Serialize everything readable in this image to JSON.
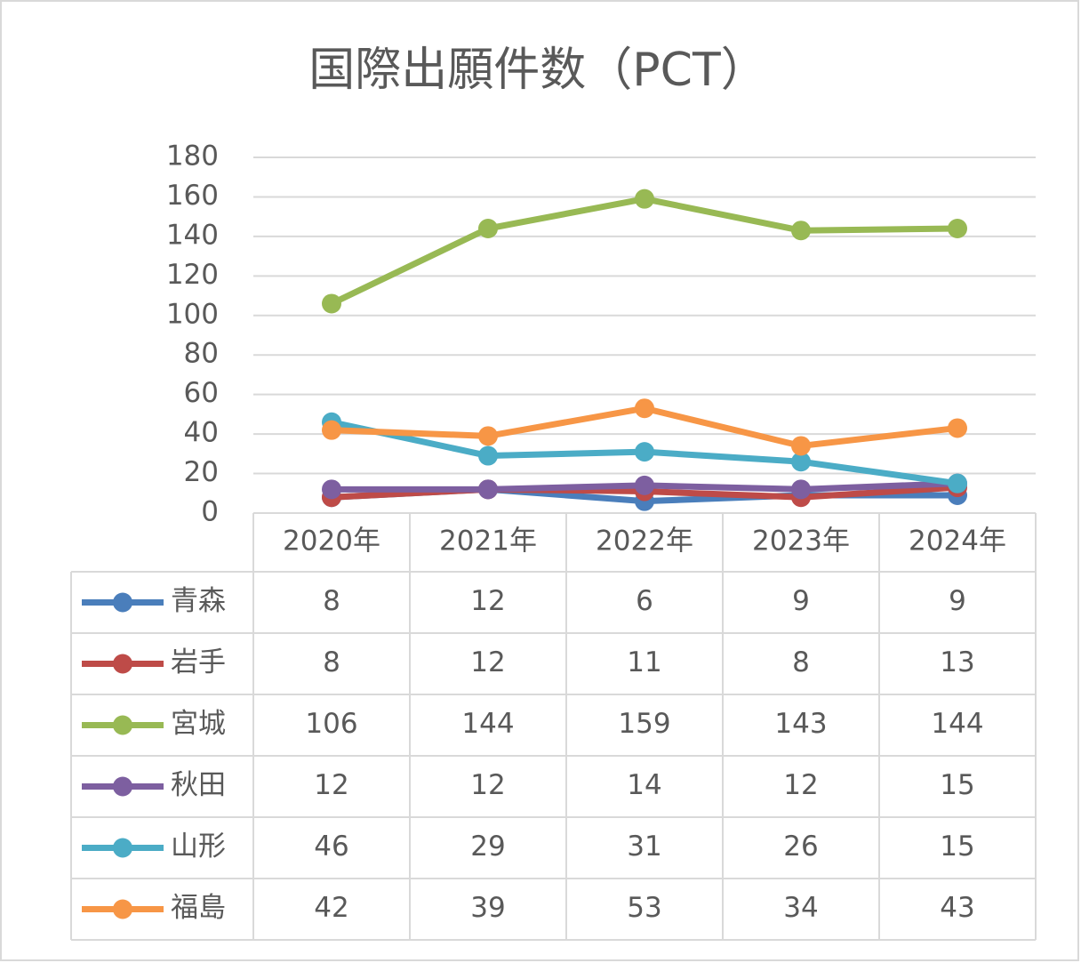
{
  "chart_data": {
    "type": "line",
    "title": "国際出願件数（PCT）",
    "categories": [
      "2020年",
      "2021年",
      "2022年",
      "2023年",
      "2024年"
    ],
    "series": [
      {
        "name": "青森",
        "color": "#4a7ebb",
        "values": [
          8,
          12,
          6,
          9,
          9
        ]
      },
      {
        "name": "岩手",
        "color": "#be4b48",
        "values": [
          8,
          12,
          11,
          8,
          13
        ]
      },
      {
        "name": "宮城",
        "color": "#98b954",
        "values": [
          106,
          144,
          159,
          143,
          144
        ]
      },
      {
        "name": "秋田",
        "color": "#7d5fa0",
        "values": [
          12,
          12,
          14,
          12,
          15
        ]
      },
      {
        "name": "山形",
        "color": "#4bacc6",
        "values": [
          46,
          29,
          31,
          26,
          15
        ]
      },
      {
        "name": "福島",
        "color": "#f79646",
        "values": [
          42,
          39,
          53,
          34,
          43
        ]
      }
    ],
    "ylim": [
      0,
      180
    ],
    "yticks": [
      0,
      20,
      40,
      60,
      80,
      100,
      120,
      140,
      160,
      180
    ],
    "grid": true
  }
}
